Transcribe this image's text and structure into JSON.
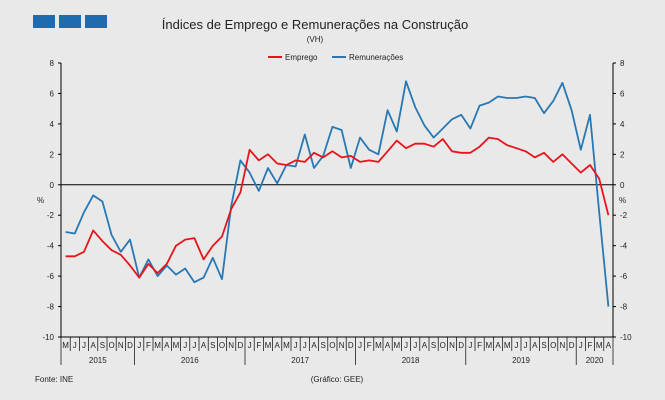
{
  "header": {
    "logo_name": "INE logo"
  },
  "chart_data": {
    "type": "line",
    "title": "Índices de Emprego e Remunerações na Construção",
    "subtitle": "(VH)",
    "y_unit_left": "%",
    "y_unit_right": "%",
    "ylim": [
      -10,
      8
    ],
    "yticks": [
      -10,
      -8,
      -6,
      -4,
      -2,
      0,
      2,
      4,
      6,
      8
    ],
    "month_labels": [
      "M",
      "J",
      "J",
      "A",
      "S",
      "O",
      "N",
      "D",
      "J",
      "F",
      "M",
      "A",
      "M",
      "J",
      "J",
      "A",
      "S",
      "O",
      "N",
      "D",
      "J",
      "F",
      "M",
      "A",
      "M",
      "J",
      "J",
      "A",
      "S",
      "O",
      "N",
      "D",
      "J",
      "F",
      "M",
      "A",
      "M",
      "J",
      "J",
      "A",
      "S",
      "O",
      "N",
      "D",
      "J",
      "F",
      "M",
      "A",
      "M",
      "J",
      "J",
      "A",
      "S",
      "O",
      "N",
      "D",
      "J",
      "F",
      "M",
      "A"
    ],
    "years": [
      {
        "label": "2015",
        "start": 0,
        "end": 7
      },
      {
        "label": "2016",
        "start": 8,
        "end": 19
      },
      {
        "label": "2017",
        "start": 20,
        "end": 31
      },
      {
        "label": "2018",
        "start": 32,
        "end": 43
      },
      {
        "label": "2019",
        "start": 44,
        "end": 55
      },
      {
        "label": "2020",
        "start": 56,
        "end": 59
      }
    ],
    "series": [
      {
        "name": "Emprego",
        "color": "#e8141b",
        "values": [
          -4.7,
          -4.7,
          -4.4,
          -3.0,
          -3.7,
          -4.3,
          -4.6,
          -5.3,
          -6.1,
          -5.2,
          -5.8,
          -5.2,
          -4.0,
          -3.6,
          -3.5,
          -4.9,
          -4.0,
          -3.4,
          -1.6,
          -0.5,
          2.3,
          1.6,
          2.0,
          1.4,
          1.3,
          1.6,
          1.5,
          2.1,
          1.8,
          2.2,
          1.8,
          1.9,
          1.5,
          1.6,
          1.5,
          2.2,
          2.9,
          2.4,
          2.7,
          2.7,
          2.5,
          3.0,
          2.2,
          2.1,
          2.1,
          2.5,
          3.1,
          3.0,
          2.6,
          2.4,
          2.2,
          1.8,
          2.1,
          1.5,
          2.0,
          1.4,
          0.8,
          1.3,
          0.4,
          -2.0
        ]
      },
      {
        "name": "Remunerações",
        "color": "#2878b4",
        "values": [
          -3.1,
          -3.2,
          -1.8,
          -0.7,
          -1.1,
          -3.3,
          -4.4,
          -3.6,
          -6.1,
          -4.9,
          -6.0,
          -5.3,
          -5.9,
          -5.5,
          -6.4,
          -6.1,
          -4.8,
          -6.2,
          -1.4,
          1.6,
          0.8,
          -0.4,
          1.1,
          0.1,
          1.3,
          1.2,
          3.3,
          1.1,
          1.9,
          3.8,
          3.6,
          1.1,
          3.1,
          2.3,
          2.0,
          4.9,
          3.5,
          6.8,
          5.1,
          3.9,
          3.1,
          3.7,
          4.3,
          4.6,
          3.7,
          5.2,
          5.4,
          5.8,
          5.7,
          5.7,
          5.8,
          5.7,
          4.7,
          5.5,
          6.7,
          4.9,
          2.3,
          4.6,
          -1.8,
          -8.0
        ]
      }
    ]
  },
  "footer": {
    "source": "Fonte: INE",
    "credit": "(Gráfico: GEE)"
  }
}
